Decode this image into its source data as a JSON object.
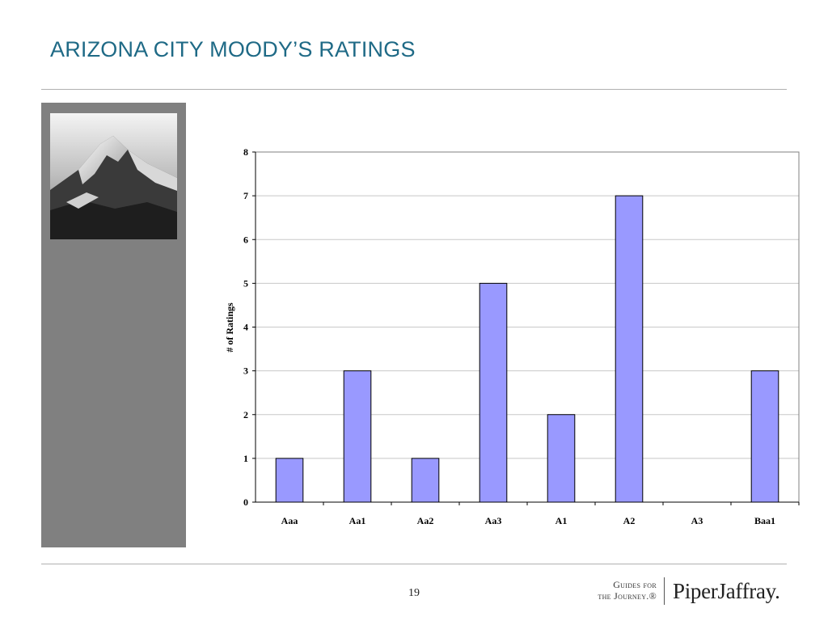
{
  "slide": {
    "title": "ARIZONA CITY MOODY’S RATINGS",
    "page_number": "19"
  },
  "brand": {
    "tagline_line1": "Guides for",
    "tagline_line2": "the Journey.®",
    "logo": "PiperJaffray."
  },
  "photo": {
    "icon": "mountain-photo-icon"
  },
  "colors": {
    "title": "#1f6a86",
    "bar_fill": "#9999ff",
    "panel": "#808080"
  },
  "chart_data": {
    "type": "bar",
    "categories": [
      "Aaa",
      "Aa1",
      "Aa2",
      "Aa3",
      "A1",
      "A2",
      "A3",
      "Baa1"
    ],
    "values": [
      1,
      3,
      1,
      5,
      2,
      7,
      0,
      3
    ],
    "title": "",
    "xlabel": "",
    "ylabel": "# of Ratings",
    "ylim": [
      0,
      8
    ],
    "yticks": [
      0,
      1,
      2,
      3,
      4,
      5,
      6,
      7,
      8
    ],
    "grid": true,
    "legend": "none"
  }
}
